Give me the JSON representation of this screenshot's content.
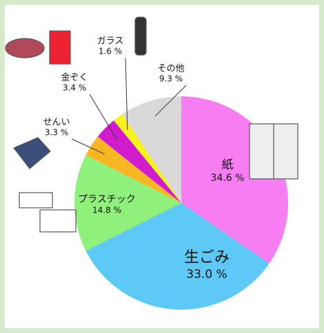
{
  "chart_data": {
    "type": "pie",
    "categories": [
      "紙",
      "生ごみ",
      "プラスチック",
      "せんい",
      "金ぞく",
      "ガラス",
      "その他"
    ],
    "values": [
      34.6,
      33.0,
      14.8,
      3.3,
      3.4,
      1.6,
      9.3
    ],
    "value_labels": [
      "34.6 %",
      "33.0 %",
      "14.8 %",
      "3.3 %",
      "3.4 %",
      "1.6 %",
      "9.3 %"
    ],
    "colors": [
      "#f77ef2",
      "#5ec9f6",
      "#8ff07c",
      "#f9b623",
      "#d01ccc",
      "#f8f320",
      "#d9d9d9"
    ]
  }
}
